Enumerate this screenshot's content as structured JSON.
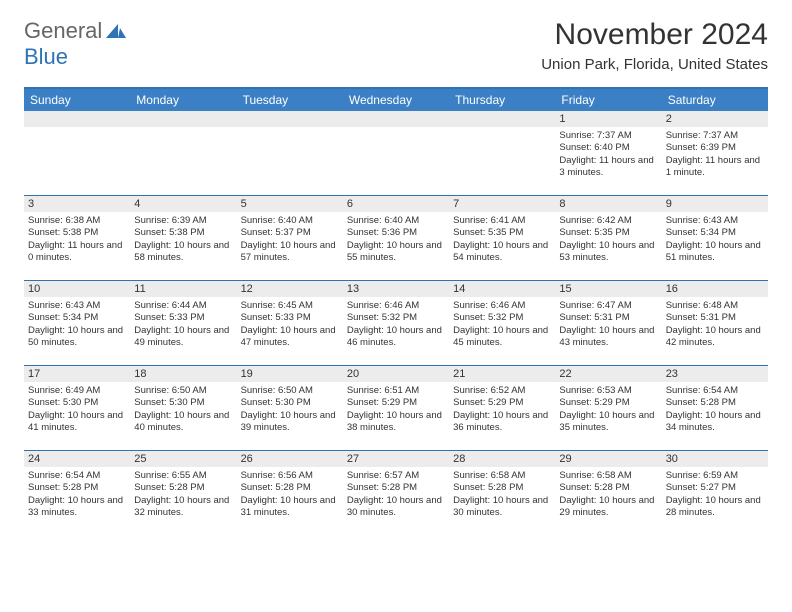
{
  "logo": {
    "part1": "General",
    "part2": "Blue"
  },
  "title": "November 2024",
  "location": "Union Park, Florida, United States",
  "colors": {
    "header_bg": "#3b7fc4",
    "border": "#2f73b5",
    "daynum_bg": "#ececec",
    "text": "#333333",
    "logo_gray": "#666666",
    "logo_blue": "#2f73b5"
  },
  "day_names": [
    "Sunday",
    "Monday",
    "Tuesday",
    "Wednesday",
    "Thursday",
    "Friday",
    "Saturday"
  ],
  "weeks": [
    [
      {
        "empty": true
      },
      {
        "empty": true
      },
      {
        "empty": true
      },
      {
        "empty": true
      },
      {
        "empty": true
      },
      {
        "n": "1",
        "sunrise": "Sunrise: 7:37 AM",
        "sunset": "Sunset: 6:40 PM",
        "daylight": "Daylight: 11 hours and 3 minutes."
      },
      {
        "n": "2",
        "sunrise": "Sunrise: 7:37 AM",
        "sunset": "Sunset: 6:39 PM",
        "daylight": "Daylight: 11 hours and 1 minute."
      }
    ],
    [
      {
        "n": "3",
        "sunrise": "Sunrise: 6:38 AM",
        "sunset": "Sunset: 5:38 PM",
        "daylight": "Daylight: 11 hours and 0 minutes."
      },
      {
        "n": "4",
        "sunrise": "Sunrise: 6:39 AM",
        "sunset": "Sunset: 5:38 PM",
        "daylight": "Daylight: 10 hours and 58 minutes."
      },
      {
        "n": "5",
        "sunrise": "Sunrise: 6:40 AM",
        "sunset": "Sunset: 5:37 PM",
        "daylight": "Daylight: 10 hours and 57 minutes."
      },
      {
        "n": "6",
        "sunrise": "Sunrise: 6:40 AM",
        "sunset": "Sunset: 5:36 PM",
        "daylight": "Daylight: 10 hours and 55 minutes."
      },
      {
        "n": "7",
        "sunrise": "Sunrise: 6:41 AM",
        "sunset": "Sunset: 5:35 PM",
        "daylight": "Daylight: 10 hours and 54 minutes."
      },
      {
        "n": "8",
        "sunrise": "Sunrise: 6:42 AM",
        "sunset": "Sunset: 5:35 PM",
        "daylight": "Daylight: 10 hours and 53 minutes."
      },
      {
        "n": "9",
        "sunrise": "Sunrise: 6:43 AM",
        "sunset": "Sunset: 5:34 PM",
        "daylight": "Daylight: 10 hours and 51 minutes."
      }
    ],
    [
      {
        "n": "10",
        "sunrise": "Sunrise: 6:43 AM",
        "sunset": "Sunset: 5:34 PM",
        "daylight": "Daylight: 10 hours and 50 minutes."
      },
      {
        "n": "11",
        "sunrise": "Sunrise: 6:44 AM",
        "sunset": "Sunset: 5:33 PM",
        "daylight": "Daylight: 10 hours and 49 minutes."
      },
      {
        "n": "12",
        "sunrise": "Sunrise: 6:45 AM",
        "sunset": "Sunset: 5:33 PM",
        "daylight": "Daylight: 10 hours and 47 minutes."
      },
      {
        "n": "13",
        "sunrise": "Sunrise: 6:46 AM",
        "sunset": "Sunset: 5:32 PM",
        "daylight": "Daylight: 10 hours and 46 minutes."
      },
      {
        "n": "14",
        "sunrise": "Sunrise: 6:46 AM",
        "sunset": "Sunset: 5:32 PM",
        "daylight": "Daylight: 10 hours and 45 minutes."
      },
      {
        "n": "15",
        "sunrise": "Sunrise: 6:47 AM",
        "sunset": "Sunset: 5:31 PM",
        "daylight": "Daylight: 10 hours and 43 minutes."
      },
      {
        "n": "16",
        "sunrise": "Sunrise: 6:48 AM",
        "sunset": "Sunset: 5:31 PM",
        "daylight": "Daylight: 10 hours and 42 minutes."
      }
    ],
    [
      {
        "n": "17",
        "sunrise": "Sunrise: 6:49 AM",
        "sunset": "Sunset: 5:30 PM",
        "daylight": "Daylight: 10 hours and 41 minutes."
      },
      {
        "n": "18",
        "sunrise": "Sunrise: 6:50 AM",
        "sunset": "Sunset: 5:30 PM",
        "daylight": "Daylight: 10 hours and 40 minutes."
      },
      {
        "n": "19",
        "sunrise": "Sunrise: 6:50 AM",
        "sunset": "Sunset: 5:30 PM",
        "daylight": "Daylight: 10 hours and 39 minutes."
      },
      {
        "n": "20",
        "sunrise": "Sunrise: 6:51 AM",
        "sunset": "Sunset: 5:29 PM",
        "daylight": "Daylight: 10 hours and 38 minutes."
      },
      {
        "n": "21",
        "sunrise": "Sunrise: 6:52 AM",
        "sunset": "Sunset: 5:29 PM",
        "daylight": "Daylight: 10 hours and 36 minutes."
      },
      {
        "n": "22",
        "sunrise": "Sunrise: 6:53 AM",
        "sunset": "Sunset: 5:29 PM",
        "daylight": "Daylight: 10 hours and 35 minutes."
      },
      {
        "n": "23",
        "sunrise": "Sunrise: 6:54 AM",
        "sunset": "Sunset: 5:28 PM",
        "daylight": "Daylight: 10 hours and 34 minutes."
      }
    ],
    [
      {
        "n": "24",
        "sunrise": "Sunrise: 6:54 AM",
        "sunset": "Sunset: 5:28 PM",
        "daylight": "Daylight: 10 hours and 33 minutes."
      },
      {
        "n": "25",
        "sunrise": "Sunrise: 6:55 AM",
        "sunset": "Sunset: 5:28 PM",
        "daylight": "Daylight: 10 hours and 32 minutes."
      },
      {
        "n": "26",
        "sunrise": "Sunrise: 6:56 AM",
        "sunset": "Sunset: 5:28 PM",
        "daylight": "Daylight: 10 hours and 31 minutes."
      },
      {
        "n": "27",
        "sunrise": "Sunrise: 6:57 AM",
        "sunset": "Sunset: 5:28 PM",
        "daylight": "Daylight: 10 hours and 30 minutes."
      },
      {
        "n": "28",
        "sunrise": "Sunrise: 6:58 AM",
        "sunset": "Sunset: 5:28 PM",
        "daylight": "Daylight: 10 hours and 30 minutes."
      },
      {
        "n": "29",
        "sunrise": "Sunrise: 6:58 AM",
        "sunset": "Sunset: 5:28 PM",
        "daylight": "Daylight: 10 hours and 29 minutes."
      },
      {
        "n": "30",
        "sunrise": "Sunrise: 6:59 AM",
        "sunset": "Sunset: 5:27 PM",
        "daylight": "Daylight: 10 hours and 28 minutes."
      }
    ]
  ]
}
